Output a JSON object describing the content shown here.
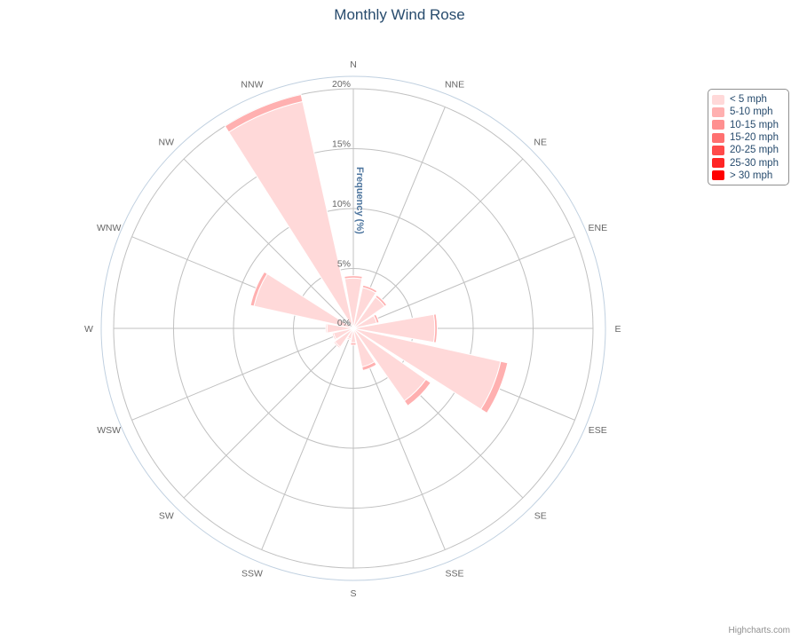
{
  "title": "Monthly Wind Rose",
  "credits": "Highcharts.com",
  "chart_data": {
    "type": "bar",
    "polar": true,
    "stacked": true,
    "categories": [
      "N",
      "NNE",
      "NE",
      "ENE",
      "E",
      "ESE",
      "SE",
      "SSE",
      "S",
      "SSW",
      "SW",
      "WSW",
      "W",
      "WNW",
      "NW",
      "NNW"
    ],
    "yaxis": {
      "title": "Frequency (%)",
      "min": 0,
      "max": 20,
      "ticks": [
        "0%",
        "5%",
        "10%",
        "15%",
        "20%"
      ]
    },
    "legend_position": "top-right",
    "series": [
      {
        "name": "< 5 mph",
        "color": "#ffd9d9",
        "values": [
          4.2,
          3.5,
          3.2,
          2.0,
          6.8,
          12.6,
          7.4,
          3.3,
          1.2,
          0.9,
          1.9,
          1.7,
          2.2,
          8.5,
          0.0,
          19.4
        ]
      },
      {
        "name": "5-10 mph",
        "color": "#ffb0b0",
        "values": [
          0.2,
          0.2,
          0.2,
          0.2,
          0.2,
          0.6,
          0.5,
          0.3,
          0.2,
          0.1,
          0.1,
          0.1,
          0.1,
          0.3,
          0.0,
          0.7
        ]
      },
      {
        "name": "10-15 mph",
        "color": "#ff9090",
        "values": [
          0,
          0,
          0,
          0,
          0,
          0,
          0,
          0,
          0,
          0,
          0,
          0,
          0,
          0,
          0,
          0
        ]
      },
      {
        "name": "15-20 mph",
        "color": "#ff7070",
        "values": [
          0,
          0,
          0,
          0,
          0,
          0,
          0,
          0,
          0,
          0,
          0,
          0,
          0,
          0,
          0,
          0
        ]
      },
      {
        "name": "20-25 mph",
        "color": "#ff4a4a",
        "values": [
          0,
          0,
          0,
          0,
          0,
          0,
          0,
          0,
          0,
          0,
          0,
          0,
          0,
          0,
          0,
          0
        ]
      },
      {
        "name": "25-30 mph",
        "color": "#ff2525",
        "values": [
          0,
          0,
          0,
          0,
          0,
          0,
          0,
          0,
          0,
          0,
          0,
          0,
          0,
          0,
          0,
          0
        ]
      },
      {
        "name": "> 30 mph",
        "color": "#ff0000",
        "values": [
          0,
          0,
          0,
          0,
          0,
          0,
          0,
          0,
          0,
          0,
          0,
          0,
          0,
          0,
          0,
          0
        ]
      }
    ]
  }
}
